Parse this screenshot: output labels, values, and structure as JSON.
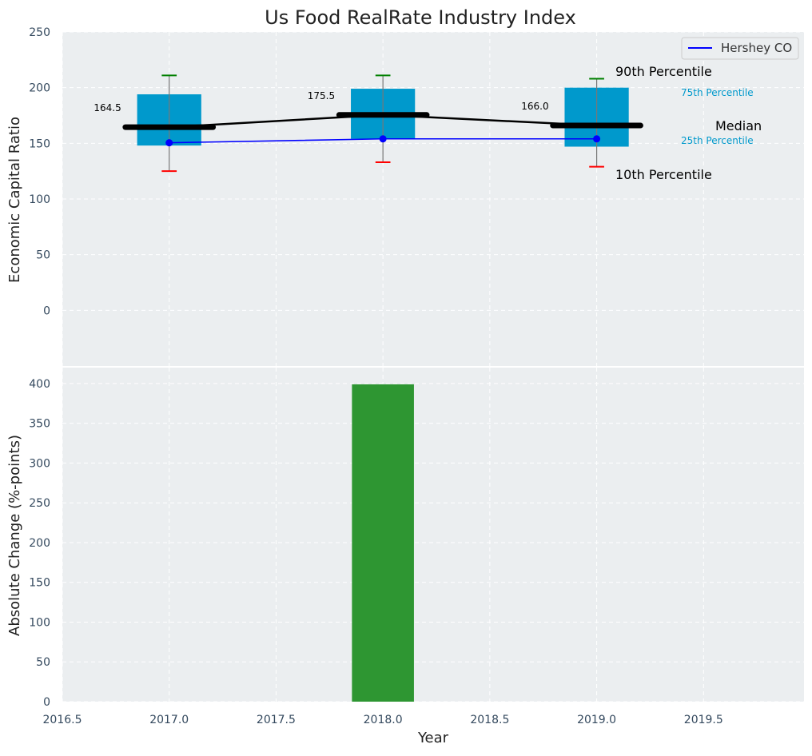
{
  "chart_data": [
    {
      "type": "box",
      "title": "Us Food RealRate Industry Index",
      "ylabel": "Economic Capital Ratio",
      "ylim": [
        -50,
        250
      ],
      "xlim": [
        2016.5,
        2019.97
      ],
      "yticks": [
        0,
        50,
        100,
        150,
        200,
        250
      ],
      "grid": true,
      "legend": {
        "position": "top-right",
        "entries": [
          "Hershey CO"
        ]
      },
      "boxes": [
        {
          "x": 2017,
          "p10": 125,
          "p25": 148,
          "median": 164.5,
          "p75": 194,
          "p90": 211,
          "median_label": "164.5"
        },
        {
          "x": 2018,
          "p10": 133,
          "p25": 154,
          "median": 175.5,
          "p75": 199,
          "p90": 211,
          "median_label": "175.5"
        },
        {
          "x": 2019,
          "p10": 129,
          "p25": 147,
          "median": 166.0,
          "p75": 200,
          "p90": 208,
          "median_label": "166.0"
        }
      ],
      "series": [
        {
          "name": "Hershey CO",
          "x": [
            2017,
            2018,
            2019
          ],
          "values": [
            150.5,
            154,
            154
          ],
          "color": "#0000ff"
        }
      ],
      "percentile_labels": {
        "p90": "90th Percentile",
        "p75": "75th Percentile",
        "median": "Median",
        "p25": "25th Percentile",
        "p10": "10th Percentile"
      },
      "colors": {
        "box": "#0099cc",
        "median": "#000000",
        "p90_cap": "#008000",
        "p10_cap": "#ff0000",
        "background": "#ebeef0",
        "tick_text": "#34495e"
      }
    },
    {
      "type": "bar",
      "ylabel": "Absolute Change (%-points)",
      "xlabel": "Year",
      "ylim": [
        0,
        420
      ],
      "xlim": [
        2016.5,
        2019.97
      ],
      "yticks": [
        0,
        50,
        100,
        150,
        200,
        250,
        300,
        350,
        400
      ],
      "xticks": [
        2016.5,
        2017.0,
        2017.5,
        2018.0,
        2018.5,
        2019.0,
        2019.5
      ],
      "xtick_labels": [
        "2016.5",
        "2017.0",
        "2017.5",
        "2018.0",
        "2018.5",
        "2019.0",
        "2019.5"
      ],
      "grid": true,
      "bars": [
        {
          "x": 2018,
          "value": 399,
          "color": "#2e9632"
        }
      ]
    }
  ]
}
